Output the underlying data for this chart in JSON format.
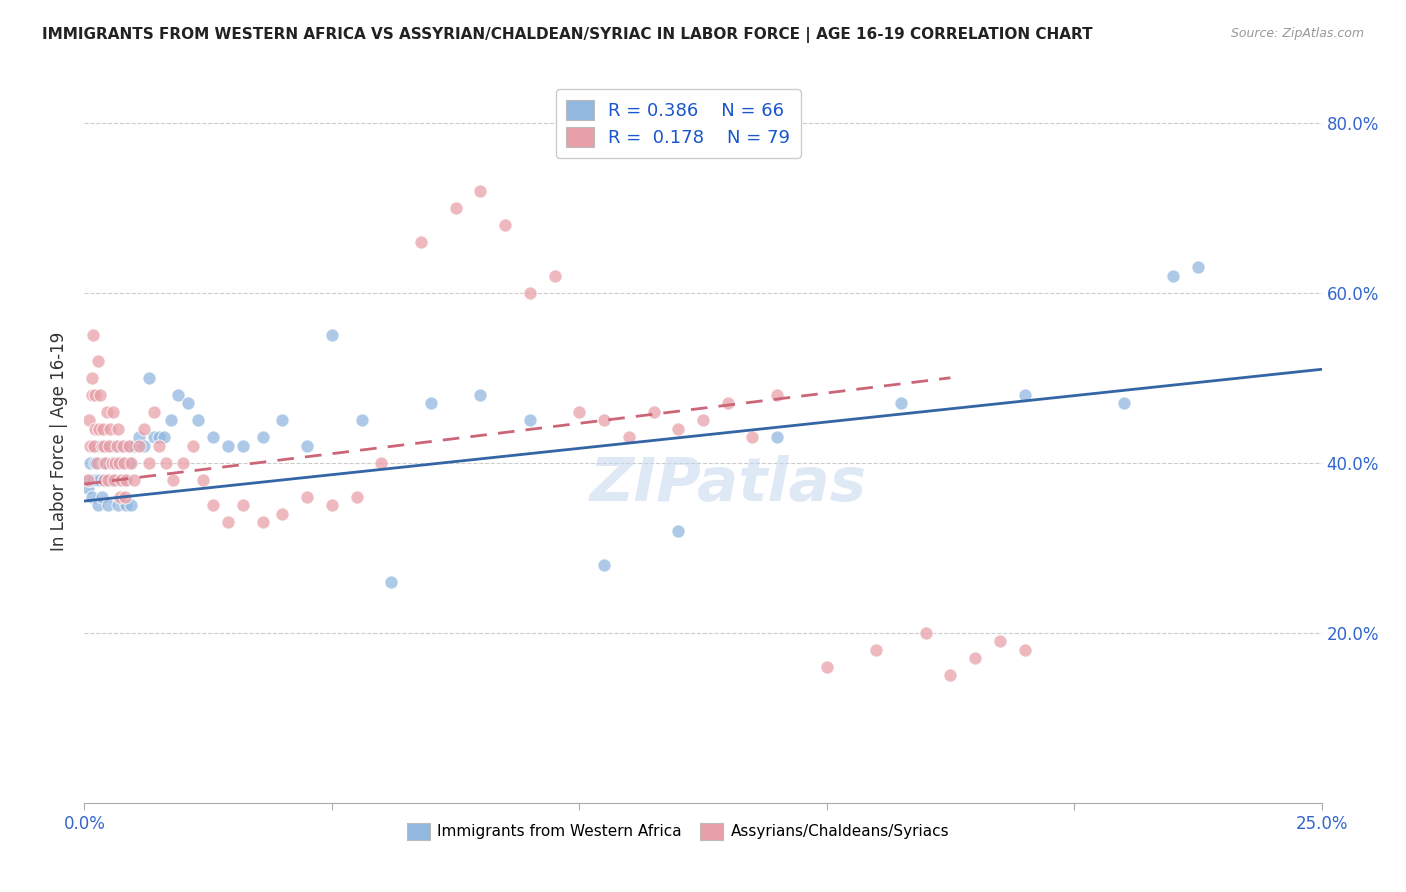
{
  "title": "IMMIGRANTS FROM WESTERN AFRICA VS ASSYRIAN/CHALDEAN/SYRIAC IN LABOR FORCE | AGE 16-19 CORRELATION CHART",
  "source": "Source: ZipAtlas.com",
  "ylabel": "In Labor Force | Age 16-19",
  "x_min": 0.0,
  "x_max": 0.25,
  "y_min": 0.0,
  "y_max": 0.85,
  "x_ticks": [
    0.0,
    0.05,
    0.1,
    0.15,
    0.2,
    0.25
  ],
  "x_tick_labels": [
    "0.0%",
    "",
    "",
    "",
    "",
    "25.0%"
  ],
  "y_ticks": [
    0.2,
    0.4,
    0.6,
    0.8
  ],
  "y_tick_labels": [
    "20.0%",
    "40.0%",
    "60.0%",
    "80.0%"
  ],
  "watermark": "ZIPatlas",
  "blue_color": "#92b8e0",
  "pink_color": "#e8a0a8",
  "blue_line_color": "#3465a4",
  "pink_line_color": "#cc6677",
  "series1_label": "Immigrants from Western Africa",
  "series2_label": "Assyrians/Chaldeans/Syriacs",
  "blue_scatter_x": [
    0.0008,
    0.001,
    0.0012,
    0.0015,
    0.0018,
    0.002,
    0.0022,
    0.0025,
    0.0028,
    0.003,
    0.0032,
    0.0035,
    0.0038,
    0.004,
    0.0042,
    0.0045,
    0.0048,
    0.005,
    0.0052,
    0.0055,
    0.0058,
    0.006,
    0.0062,
    0.0065,
    0.0068,
    0.007,
    0.0072,
    0.0075,
    0.0078,
    0.008,
    0.0082,
    0.0085,
    0.0088,
    0.009,
    0.0095,
    0.01,
    0.011,
    0.012,
    0.013,
    0.014,
    0.015,
    0.016,
    0.0175,
    0.019,
    0.021,
    0.023,
    0.026,
    0.029,
    0.032,
    0.036,
    0.04,
    0.045,
    0.05,
    0.056,
    0.062,
    0.07,
    0.08,
    0.09,
    0.105,
    0.12,
    0.14,
    0.165,
    0.19,
    0.21,
    0.22,
    0.225
  ],
  "blue_scatter_y": [
    0.37,
    0.38,
    0.4,
    0.36,
    0.38,
    0.42,
    0.4,
    0.38,
    0.35,
    0.42,
    0.38,
    0.36,
    0.4,
    0.38,
    0.42,
    0.4,
    0.35,
    0.38,
    0.42,
    0.4,
    0.38,
    0.42,
    0.4,
    0.38,
    0.35,
    0.42,
    0.4,
    0.38,
    0.42,
    0.4,
    0.38,
    0.35,
    0.42,
    0.4,
    0.35,
    0.42,
    0.43,
    0.42,
    0.5,
    0.43,
    0.43,
    0.43,
    0.45,
    0.48,
    0.47,
    0.45,
    0.43,
    0.42,
    0.42,
    0.43,
    0.45,
    0.42,
    0.55,
    0.45,
    0.26,
    0.47,
    0.48,
    0.45,
    0.28,
    0.32,
    0.43,
    0.47,
    0.48,
    0.47,
    0.62,
    0.63
  ],
  "pink_scatter_x": [
    0.0008,
    0.001,
    0.0012,
    0.0015,
    0.0015,
    0.0018,
    0.002,
    0.0022,
    0.0022,
    0.0025,
    0.0028,
    0.003,
    0.0032,
    0.0035,
    0.0038,
    0.004,
    0.004,
    0.0042,
    0.0045,
    0.0048,
    0.005,
    0.0052,
    0.0055,
    0.0058,
    0.006,
    0.0062,
    0.0065,
    0.0068,
    0.007,
    0.0072,
    0.0075,
    0.0078,
    0.008,
    0.0082,
    0.0085,
    0.009,
    0.0095,
    0.01,
    0.011,
    0.012,
    0.013,
    0.014,
    0.015,
    0.0165,
    0.018,
    0.02,
    0.022,
    0.024,
    0.026,
    0.029,
    0.032,
    0.036,
    0.04,
    0.045,
    0.05,
    0.055,
    0.06,
    0.068,
    0.075,
    0.08,
    0.085,
    0.09,
    0.095,
    0.1,
    0.105,
    0.11,
    0.115,
    0.12,
    0.125,
    0.13,
    0.135,
    0.14,
    0.15,
    0.16,
    0.17,
    0.175,
    0.18,
    0.185,
    0.19
  ],
  "pink_scatter_y": [
    0.38,
    0.45,
    0.42,
    0.5,
    0.48,
    0.55,
    0.42,
    0.48,
    0.44,
    0.4,
    0.52,
    0.44,
    0.48,
    0.42,
    0.44,
    0.38,
    0.42,
    0.4,
    0.46,
    0.38,
    0.42,
    0.44,
    0.4,
    0.46,
    0.38,
    0.4,
    0.42,
    0.44,
    0.4,
    0.36,
    0.38,
    0.42,
    0.4,
    0.36,
    0.38,
    0.42,
    0.4,
    0.38,
    0.42,
    0.44,
    0.4,
    0.46,
    0.42,
    0.4,
    0.38,
    0.4,
    0.42,
    0.38,
    0.35,
    0.33,
    0.35,
    0.33,
    0.34,
    0.36,
    0.35,
    0.36,
    0.4,
    0.66,
    0.7,
    0.72,
    0.68,
    0.6,
    0.62,
    0.46,
    0.45,
    0.43,
    0.46,
    0.44,
    0.45,
    0.47,
    0.43,
    0.48,
    0.16,
    0.18,
    0.2,
    0.15,
    0.17,
    0.19,
    0.18
  ],
  "blue_line_x": [
    0.0,
    0.25
  ],
  "blue_line_y": [
    0.355,
    0.51
  ],
  "pink_line_x": [
    0.0,
    0.175
  ],
  "pink_line_y": [
    0.375,
    0.5
  ]
}
